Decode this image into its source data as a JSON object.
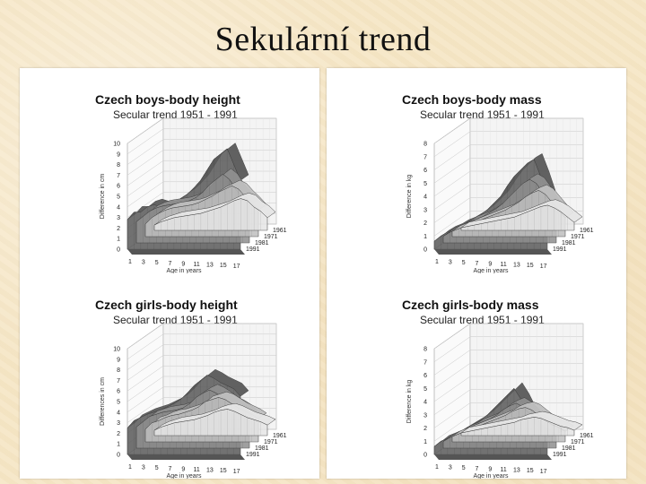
{
  "slide": {
    "title": "Sekulární trend"
  },
  "chart_data": [
    {
      "type": "area",
      "title": "Czech boys-body height",
      "subtitle": "Secular trend 1951 - 1991",
      "ylabel": "Difference in cm",
      "xlabel": "Age in years",
      "ylim": [
        0,
        10
      ],
      "yticks": [
        0,
        1,
        2,
        3,
        4,
        5,
        6,
        7,
        8,
        9,
        10
      ],
      "xtick_labels": [
        "1",
        "3",
        "5",
        "7",
        "9",
        "11",
        "13",
        "15",
        "17"
      ],
      "x": [
        1,
        2,
        3,
        4,
        5,
        6,
        7,
        8,
        9,
        10,
        11,
        12,
        13,
        14,
        15,
        16,
        17,
        18
      ],
      "series": [
        {
          "name": "1961",
          "values": [
            0.5,
            0.8,
            1.0,
            1.2,
            1.3,
            1.4,
            1.5,
            1.6,
            1.8,
            2.0,
            2.2,
            2.5,
            2.8,
            3.0,
            2.8,
            2.2,
            1.8,
            1.2
          ]
        },
        {
          "name": "1971",
          "values": [
            1.2,
            1.8,
            2.2,
            2.5,
            2.7,
            2.8,
            2.9,
            3.0,
            3.2,
            3.5,
            3.8,
            4.2,
            4.5,
            4.8,
            4.5,
            3.8,
            3.2,
            2.5
          ]
        },
        {
          "name": "1981",
          "values": [
            2.0,
            2.5,
            3.0,
            3.3,
            3.5,
            3.6,
            3.7,
            3.8,
            4.0,
            4.3,
            4.8,
            5.5,
            6.0,
            6.5,
            6.0,
            5.0,
            4.3,
            3.5
          ]
        },
        {
          "name": "1991",
          "values": [
            2.8,
            3.5,
            3.5,
            4.0,
            4.2,
            4.0,
            4.0,
            4.2,
            4.8,
            5.2,
            5.8,
            6.5,
            7.5,
            8.5,
            9.0,
            9.5,
            8.0,
            6.5
          ]
        }
      ]
    },
    {
      "type": "area",
      "title": "Czech boys-body mass",
      "subtitle": "Secular trend 1951 - 1991",
      "ylabel": "Difference in kg",
      "xlabel": "Age in years",
      "ylim": [
        0,
        8
      ],
      "yticks": [
        0,
        1,
        2,
        3,
        4,
        5,
        6,
        7,
        8
      ],
      "xtick_labels": [
        "1",
        "3",
        "5",
        "7",
        "9",
        "11",
        "13",
        "15",
        "17"
      ],
      "x": [
        1,
        2,
        3,
        4,
        5,
        6,
        7,
        8,
        9,
        10,
        11,
        12,
        13,
        14,
        15,
        16,
        17,
        18
      ],
      "series": [
        {
          "name": "1961",
          "values": [
            0.2,
            0.3,
            0.4,
            0.5,
            0.6,
            0.7,
            0.8,
            0.9,
            1.0,
            1.2,
            1.4,
            1.6,
            1.8,
            1.9,
            1.7,
            1.4,
            1.0,
            0.6
          ]
        },
        {
          "name": "1971",
          "values": [
            0.4,
            0.6,
            0.8,
            1.0,
            1.2,
            1.4,
            1.6,
            1.8,
            2.0,
            2.3,
            2.6,
            3.0,
            3.3,
            3.5,
            3.2,
            2.6,
            2.0,
            1.4
          ]
        },
        {
          "name": "1981",
          "values": [
            0.5,
            0.8,
            1.0,
            1.3,
            1.6,
            1.8,
            2.0,
            2.3,
            2.6,
            3.0,
            3.5,
            4.0,
            4.5,
            4.8,
            4.5,
            3.8,
            3.0,
            2.2
          ]
        },
        {
          "name": "1991",
          "values": [
            0.6,
            1.0,
            1.3,
            1.5,
            1.8,
            2.0,
            2.3,
            2.6,
            3.0,
            3.5,
            4.0,
            4.8,
            5.5,
            6.0,
            6.5,
            6.8,
            5.5,
            4.0
          ]
        }
      ]
    },
    {
      "type": "area",
      "title": "Czech girls-body height",
      "subtitle": "Secular trend 1951 - 1991",
      "ylabel": "Differences in cm",
      "xlabel": "Age in years",
      "ylim": [
        0,
        10
      ],
      "yticks": [
        0,
        1,
        2,
        3,
        4,
        5,
        6,
        7,
        8,
        9,
        10
      ],
      "xtick_labels": [
        "1",
        "3",
        "5",
        "7",
        "9",
        "11",
        "13",
        "15",
        "17"
      ],
      "x": [
        1,
        2,
        3,
        4,
        5,
        6,
        7,
        8,
        9,
        10,
        11,
        12,
        13,
        14,
        15,
        16,
        17,
        18
      ],
      "series": [
        {
          "name": "1961",
          "values": [
            0.5,
            0.8,
            1.0,
            1.2,
            1.3,
            1.4,
            1.5,
            1.7,
            1.9,
            2.2,
            2.4,
            2.5,
            2.3,
            2.0,
            1.7,
            1.5,
            1.3,
            1.0
          ]
        },
        {
          "name": "1971",
          "values": [
            1.2,
            1.8,
            2.0,
            2.3,
            2.5,
            2.6,
            2.8,
            3.0,
            3.3,
            3.8,
            4.0,
            4.2,
            4.0,
            3.6,
            3.2,
            2.9,
            2.6,
            2.2
          ]
        },
        {
          "name": "1981",
          "values": [
            2.0,
            2.5,
            3.0,
            3.2,
            3.4,
            3.5,
            3.6,
            3.8,
            4.2,
            4.8,
            5.2,
            5.5,
            5.2,
            4.8,
            4.3,
            4.0,
            3.6,
            3.0
          ]
        },
        {
          "name": "1991",
          "values": [
            2.5,
            3.2,
            3.5,
            3.8,
            4.0,
            4.2,
            4.5,
            4.8,
            5.2,
            5.8,
            6.5,
            7.0,
            7.5,
            7.2,
            6.8,
            6.5,
            6.2,
            5.5
          ]
        }
      ]
    },
    {
      "type": "area",
      "title": "Czech girls-body mass",
      "subtitle": "Secular trend 1951 - 1991",
      "ylabel": "Difference in kg",
      "xlabel": "Age in years",
      "ylim": [
        0,
        8
      ],
      "yticks": [
        0,
        1,
        2,
        3,
        4,
        5,
        6,
        7,
        8
      ],
      "xtick_labels": [
        "1",
        "3",
        "5",
        "7",
        "9",
        "11",
        "13",
        "15",
        "17"
      ],
      "x": [
        1,
        2,
        3,
        4,
        5,
        6,
        7,
        8,
        9,
        10,
        11,
        12,
        13,
        14,
        15,
        16,
        17,
        18
      ],
      "series": [
        {
          "name": "1961",
          "values": [
            0.2,
            0.3,
            0.4,
            0.5,
            0.6,
            0.7,
            0.8,
            0.9,
            1.0,
            1.2,
            1.3,
            1.4,
            1.3,
            1.1,
            0.9,
            0.7,
            0.6,
            0.4
          ]
        },
        {
          "name": "1971",
          "values": [
            0.4,
            0.6,
            0.8,
            1.0,
            1.2,
            1.4,
            1.6,
            1.8,
            2.0,
            2.3,
            2.5,
            2.6,
            2.4,
            2.0,
            1.6,
            1.3,
            1.1,
            0.8
          ]
        },
        {
          "name": "1981",
          "values": [
            0.5,
            0.8,
            1.0,
            1.3,
            1.5,
            1.8,
            2.0,
            2.2,
            2.5,
            2.9,
            3.2,
            3.4,
            3.1,
            2.6,
            2.1,
            1.7,
            1.4,
            1.0
          ]
        },
        {
          "name": "1991",
          "values": [
            0.6,
            1.0,
            1.2,
            1.4,
            1.7,
            2.0,
            2.3,
            2.6,
            3.0,
            3.5,
            4.0,
            4.5,
            5.0,
            4.2,
            3.2,
            2.4,
            1.8,
            1.2
          ]
        }
      ]
    }
  ],
  "colors": {
    "1961": "#e6e6e6",
    "1971": "#bfbfbf",
    "1981": "#8f8f8f",
    "1991": "#5a5a5a",
    "edge": "#3a3a3a",
    "grid": "#c8c8c8"
  }
}
